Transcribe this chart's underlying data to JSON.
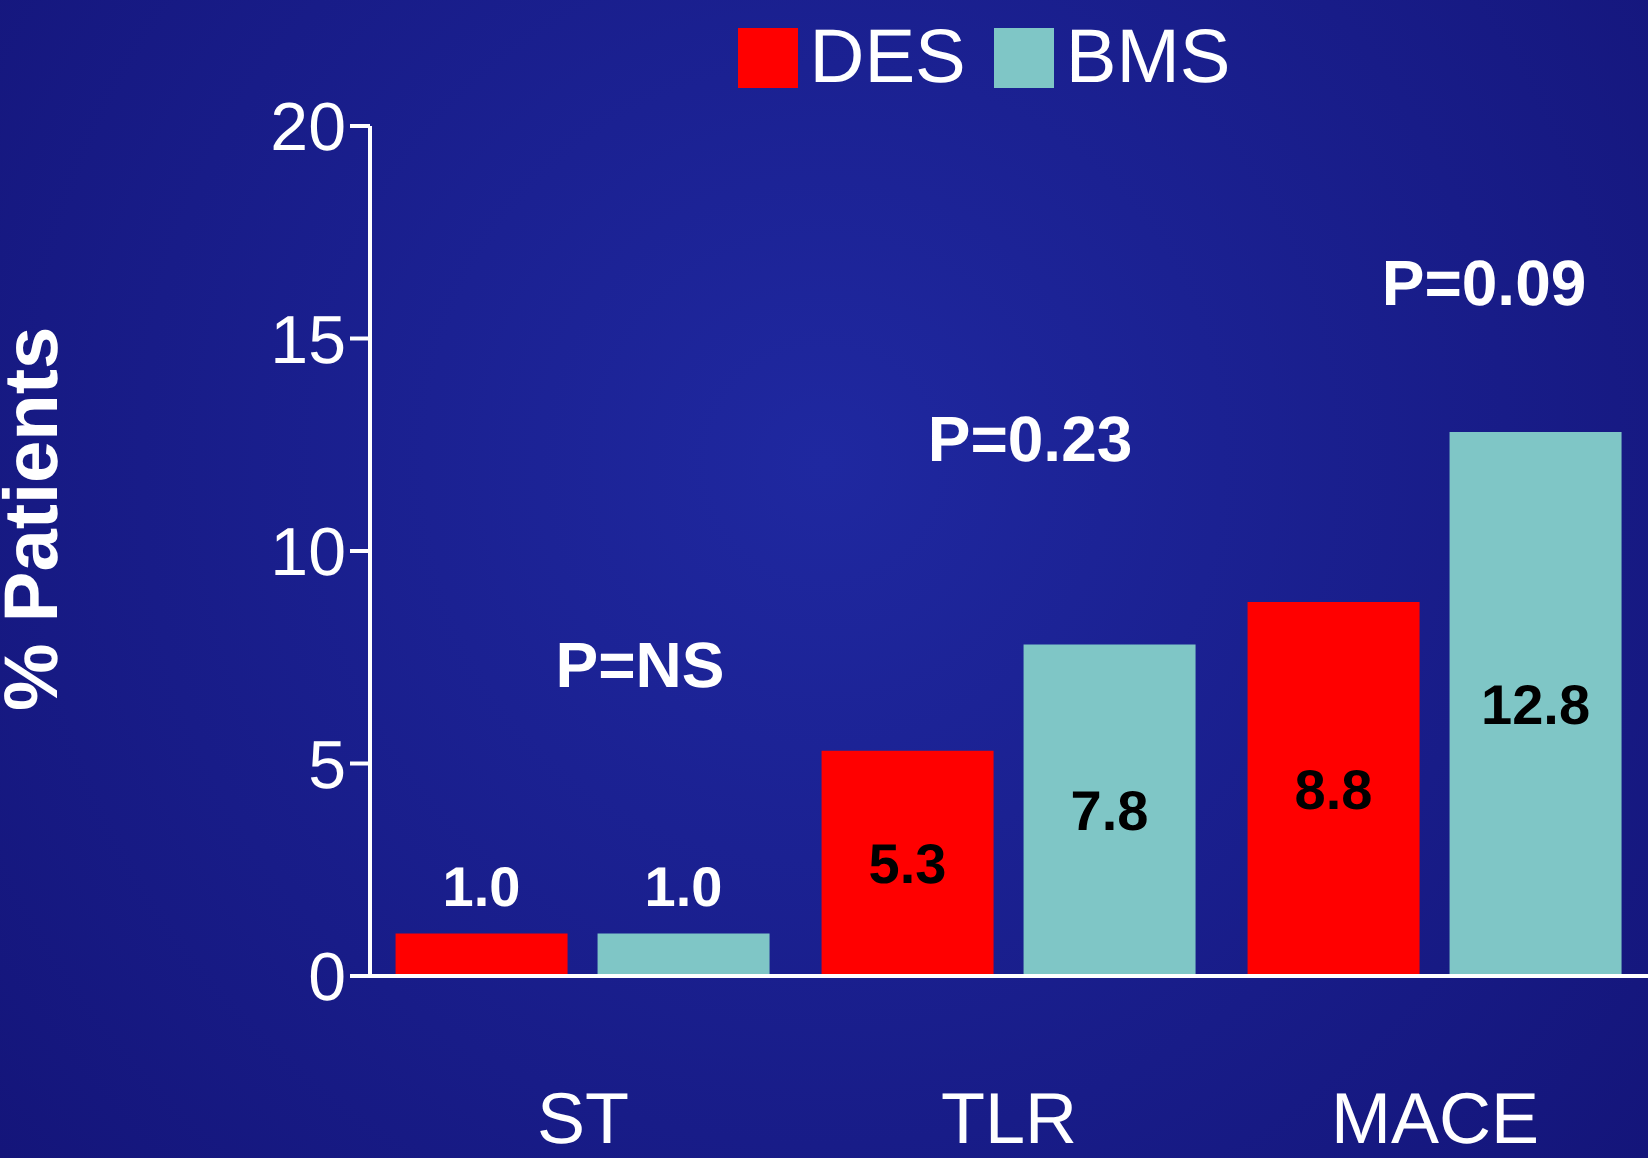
{
  "chart_data": {
    "type": "bar",
    "ylabel": "% Patients",
    "categories": [
      "ST",
      "TLR",
      "MACE"
    ],
    "series": [
      {
        "name": "DES",
        "color": "#ff0000",
        "values": [
          1.0,
          5.3,
          8.8
        ],
        "value_labels": [
          "1.0",
          "5.3",
          "8.8"
        ]
      },
      {
        "name": "BMS",
        "color": "#7fc6c6",
        "values": [
          1.0,
          7.8,
          12.8
        ],
        "value_labels": [
          "1.0",
          "7.8",
          "12.8"
        ]
      }
    ],
    "ylim": [
      0,
      20
    ],
    "yticks": [
      0,
      5,
      10,
      15,
      20
    ],
    "grid": false,
    "legend": "top",
    "annotations": [
      "P=NS",
      "P=0.23",
      "P=0.09"
    ]
  }
}
